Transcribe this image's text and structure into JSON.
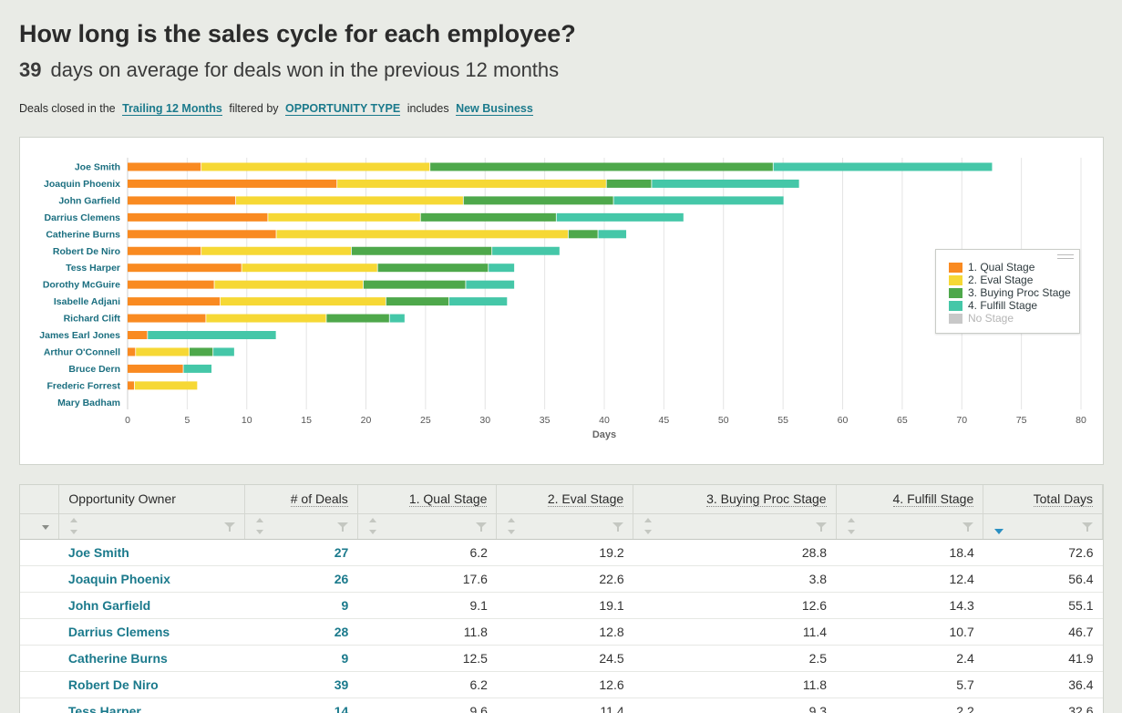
{
  "header": {
    "title": "How long is the sales cycle for each employee?",
    "subtitle_value": "39",
    "subtitle_text": "days on average for deals won in the previous 12 months"
  },
  "filters": {
    "prefix": "Deals closed in the",
    "period": "Trailing 12 Months",
    "middle": "filtered by",
    "field": "OPPORTUNITY TYPE",
    "operator": "includes",
    "value": "New Business"
  },
  "colors": {
    "qual": "#f98a21",
    "eval": "#f6d835",
    "buying": "#4ea84b",
    "fulfill": "#45c7a8",
    "none": "#c8c8c8"
  },
  "chart_data": {
    "type": "bar",
    "orientation": "horizontal",
    "stacked": true,
    "xlabel": "Days",
    "xlim": [
      0,
      80
    ],
    "xticks": [
      0,
      5,
      10,
      15,
      20,
      25,
      30,
      35,
      40,
      45,
      50,
      55,
      60,
      65,
      70,
      75,
      80
    ],
    "grid": true,
    "legend_position": "right",
    "categories": [
      "Joe Smith",
      "Joaquin Phoenix",
      "John Garfield",
      "Darrius Clemens",
      "Catherine Burns",
      "Robert De Niro",
      "Tess Harper",
      "Dorothy McGuire",
      "Isabelle Adjani",
      "Richard Clift",
      "James Earl Jones",
      "Arthur O'Connell",
      "Bruce Dern",
      "Frederic Forrest",
      "Mary Badham"
    ],
    "series": [
      {
        "name": "1. Qual Stage",
        "color": "#f98a21",
        "values": [
          6.2,
          17.6,
          9.1,
          11.8,
          12.5,
          6.2,
          9.6,
          7.3,
          7.8,
          6.6,
          1.7,
          0.7,
          4.7,
          0.6,
          0
        ]
      },
      {
        "name": "2. Eval Stage",
        "color": "#f6d835",
        "values": [
          19.2,
          22.6,
          19.1,
          12.8,
          24.5,
          12.6,
          11.4,
          12.5,
          13.9,
          10.1,
          0,
          4.5,
          0,
          5.3,
          0
        ]
      },
      {
        "name": "3. Buying Proc Stage",
        "color": "#4ea84b",
        "values": [
          28.8,
          3.8,
          12.6,
          11.4,
          2.5,
          11.8,
          9.3,
          8.6,
          5.3,
          5.3,
          0,
          2.0,
          0,
          0,
          0
        ]
      },
      {
        "name": "4. Fulfill Stage",
        "color": "#45c7a8",
        "values": [
          18.4,
          12.4,
          14.3,
          10.7,
          2.4,
          5.7,
          2.2,
          4.1,
          4.9,
          1.3,
          10.8,
          1.8,
          2.4,
          0,
          0
        ]
      },
      {
        "name": "No Stage",
        "color": "#c8c8c8",
        "values": [
          0,
          0,
          0,
          0,
          0,
          0,
          0,
          0,
          0,
          0,
          0,
          0,
          0,
          0,
          0
        ]
      }
    ]
  },
  "table": {
    "columns": [
      "Opportunity Owner",
      "# of Deals",
      "1. Qual Stage",
      "2. Eval Stage",
      "3. Buying Proc Stage",
      "4. Fulfill Stage",
      "Total Days"
    ],
    "rows": [
      {
        "owner": "Joe Smith",
        "deals": "27",
        "qual": "6.2",
        "eval": "19.2",
        "buying": "28.8",
        "fulfill": "18.4",
        "total": "72.6"
      },
      {
        "owner": "Joaquin Phoenix",
        "deals": "26",
        "qual": "17.6",
        "eval": "22.6",
        "buying": "3.8",
        "fulfill": "12.4",
        "total": "56.4"
      },
      {
        "owner": "John Garfield",
        "deals": "9",
        "qual": "9.1",
        "eval": "19.1",
        "buying": "12.6",
        "fulfill": "14.3",
        "total": "55.1"
      },
      {
        "owner": "Darrius Clemens",
        "deals": "28",
        "qual": "11.8",
        "eval": "12.8",
        "buying": "11.4",
        "fulfill": "10.7",
        "total": "46.7"
      },
      {
        "owner": "Catherine Burns",
        "deals": "9",
        "qual": "12.5",
        "eval": "24.5",
        "buying": "2.5",
        "fulfill": "2.4",
        "total": "41.9"
      },
      {
        "owner": "Robert De Niro",
        "deals": "39",
        "qual": "6.2",
        "eval": "12.6",
        "buying": "11.8",
        "fulfill": "5.7",
        "total": "36.4"
      },
      {
        "owner": "Tess Harper",
        "deals": "14",
        "qual": "9.6",
        "eval": "11.4",
        "buying": "9.3",
        "fulfill": "2.2",
        "total": "32.6"
      }
    ]
  }
}
